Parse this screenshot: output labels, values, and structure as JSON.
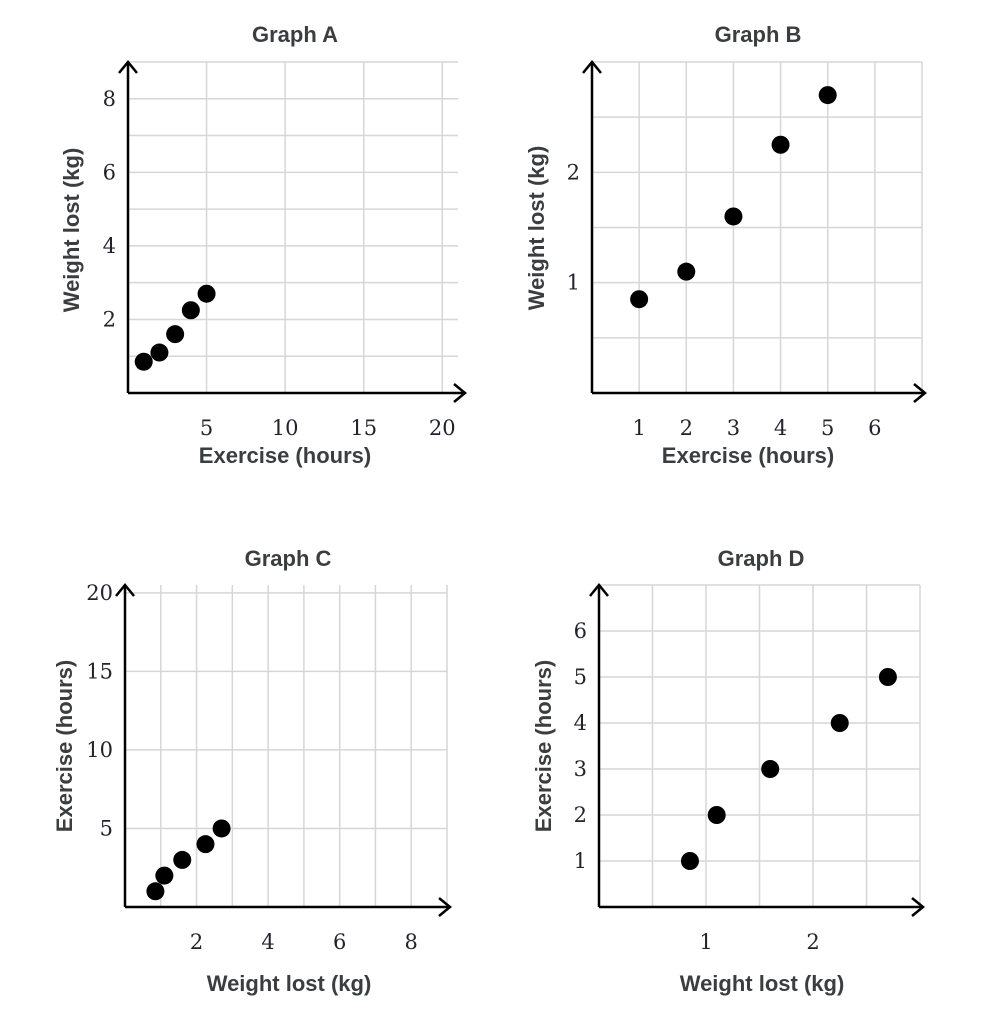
{
  "chart_data": [
    {
      "type": "scatter",
      "title": "Graph A",
      "xlabel": "Exercise (hours)",
      "ylabel": "Weight lost (kg)",
      "xlim": [
        0,
        21
      ],
      "ylim": [
        0,
        9
      ],
      "x_ticks": [
        5,
        10,
        15,
        20
      ],
      "y_ticks": [
        2,
        4,
        6,
        8
      ],
      "x_grid": [
        5,
        10,
        15,
        20
      ],
      "y_grid": [
        1,
        2,
        3,
        4,
        5,
        6,
        7,
        8,
        9
      ],
      "x": [
        1,
        2,
        3,
        4,
        5
      ],
      "y": [
        0.85,
        1.1,
        1.6,
        2.25,
        2.7
      ]
    },
    {
      "type": "scatter",
      "title": "Graph B",
      "xlabel": "Exercise (hours)",
      "ylabel": "Weight lost (kg)",
      "xlim": [
        0,
        7
      ],
      "ylim": [
        0,
        3
      ],
      "x_ticks": [
        1,
        2,
        3,
        4,
        5,
        6
      ],
      "y_ticks": [
        1,
        2
      ],
      "x_grid": [
        1,
        2,
        3,
        4,
        5,
        6,
        7
      ],
      "y_grid": [
        0.5,
        1,
        1.5,
        2,
        2.5,
        3
      ],
      "x": [
        1,
        2,
        3,
        4,
        5
      ],
      "y": [
        0.85,
        1.1,
        1.6,
        2.25,
        2.7
      ]
    },
    {
      "type": "scatter",
      "title": "Graph C",
      "xlabel": "Weight lost (kg)",
      "ylabel": "Exercise (hours)",
      "xlim": [
        0,
        9
      ],
      "ylim": [
        0,
        20.5
      ],
      "x_ticks": [
        2,
        4,
        6,
        8
      ],
      "y_ticks": [
        5,
        10,
        15,
        20
      ],
      "x_grid": [
        1,
        2,
        3,
        4,
        5,
        6,
        7,
        8,
        9
      ],
      "y_grid": [
        5,
        10,
        15,
        20
      ],
      "x": [
        0.85,
        1.1,
        1.6,
        2.25,
        2.7
      ],
      "y": [
        1,
        2,
        3,
        4,
        5
      ]
    },
    {
      "type": "scatter",
      "title": "Graph D",
      "xlabel": "Weight lost (kg)",
      "ylabel": "Exercise (hours)",
      "xlim": [
        0,
        3
      ],
      "ylim": [
        0,
        7
      ],
      "x_ticks": [
        1,
        2
      ],
      "y_ticks": [
        1,
        2,
        3,
        4,
        5,
        6
      ],
      "x_grid": [
        0.5,
        1,
        1.5,
        2,
        2.5,
        3
      ],
      "y_grid": [
        1,
        2,
        3,
        4,
        5,
        6,
        7
      ],
      "x": [
        0.85,
        1.1,
        1.6,
        2.25,
        2.7
      ],
      "y": [
        1,
        2,
        3,
        4,
        5
      ]
    }
  ]
}
